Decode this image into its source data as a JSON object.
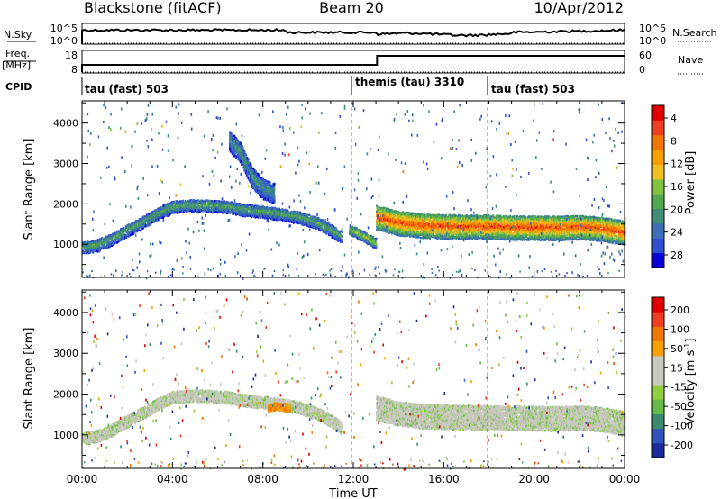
{
  "header": {
    "station": "Blackstone (fitACF)",
    "beam": "Beam 20",
    "date": "10/Apr/2012"
  },
  "top_panel": {
    "nsky_label": "N.Sky",
    "nsearch_label": "N.Search",
    "freq_label_line1": "Freq.",
    "freq_label_line2": "[MHz]",
    "nave_label": "Nave",
    "cpid_label": "CPID",
    "noise_ticks_left": [
      "10^5",
      "10^0"
    ],
    "noise_ticks_right": [
      "10^5",
      "10^0"
    ],
    "freq_ticks_left": [
      "18",
      "8"
    ],
    "nave_ticks_right": [
      "60",
      "0"
    ]
  },
  "cpid_segments": [
    {
      "label": "tau (fast) 503",
      "start_hour": 0
    },
    {
      "label": "themis (tau) 3310",
      "start_hour": 12
    },
    {
      "label": "tau (fast) 503",
      "start_hour": 18
    }
  ],
  "chart_data": [
    {
      "type": "heatmap",
      "name": "power",
      "ylabel": "Slant Range [km]",
      "xlabel": "",
      "ylim": [
        180,
        4550
      ],
      "yticks": [
        "1000",
        "2000",
        "3000",
        "4000"
      ],
      "colorbar_label": "Power [dB]",
      "colorbar_ticks": [
        "4",
        "8",
        "12",
        "16",
        "20",
        "24",
        "28"
      ],
      "colorbar_colors": [
        "#0a00d8",
        "#2f4fd0",
        "#3b6fb8",
        "#3e8e78",
        "#50a850",
        "#7fc23f",
        "#f0c020",
        "#f5a000",
        "#f07800",
        "#ee4020",
        "#e00000"
      ],
      "bands": [
        {
          "t": [
            0,
            0.6,
            1.2,
            2,
            2.8,
            3.5,
            4,
            4.8,
            5.6,
            6.4,
            7.2,
            8,
            8.8,
            9.6,
            10.4,
            11,
            11.5
          ],
          "r": [
            950,
            1000,
            1130,
            1380,
            1620,
            1840,
            1960,
            2000,
            1990,
            1960,
            1880,
            1840,
            1780,
            1700,
            1560,
            1380,
            1200
          ],
          "w": 300,
          "p": 12
        },
        {
          "t": [
            11.8,
            12.2,
            12.6,
            13
          ],
          "r": [
            1400,
            1300,
            1180,
            1050
          ],
          "w": 260,
          "p": 16
        },
        {
          "t": [
            13,
            14,
            15,
            16,
            17,
            18,
            19,
            20,
            21,
            22,
            23,
            24
          ],
          "r": [
            1700,
            1560,
            1500,
            1480,
            1470,
            1470,
            1450,
            1450,
            1440,
            1460,
            1420,
            1320
          ],
          "w": 600,
          "p": 26
        },
        {
          "t": [
            6.5,
            7,
            7.5,
            8,
            8.5
          ],
          "r": [
            3600,
            3300,
            2700,
            2400,
            2300
          ],
          "w": 500,
          "p": 10
        }
      ]
    },
    {
      "type": "heatmap",
      "name": "velocity",
      "ylabel": "Slant Range [km]",
      "xlabel": "Time UT",
      "ylim": [
        180,
        4550
      ],
      "yticks": [
        "1000",
        "2000",
        "3000",
        "4000"
      ],
      "xticks": [
        "00:00",
        "04:00",
        "08:00",
        "12:00",
        "16:00",
        "20:00",
        "00:00"
      ],
      "colorbar_label": "Velocity [m s",
      "colorbar_unit_sup": "-1",
      "colorbar_unit_close": "]",
      "colorbar_ticks": [
        "200",
        "100",
        "50",
        "15",
        "-15",
        "-50",
        "-100",
        "-200"
      ],
      "colorbar_colors": [
        "#1a2a9a",
        "#2f53b8",
        "#3a8a70",
        "#66bb44",
        "#90d040",
        "#c8c8c0",
        "#c8c8c0",
        "#f5a000",
        "#f07800",
        "#ee4020",
        "#e00000"
      ],
      "bands": [
        {
          "t": [
            0,
            0.6,
            1.2,
            2,
            2.8,
            3.5,
            4,
            4.8,
            5.6,
            6.4,
            7.2,
            8,
            8.8,
            9.6,
            10.4,
            11,
            11.5
          ],
          "r": [
            950,
            1000,
            1130,
            1380,
            1620,
            1840,
            1960,
            2000,
            1990,
            1960,
            1880,
            1840,
            1780,
            1700,
            1560,
            1380,
            1200
          ],
          "w": 300,
          "v": 0
        },
        {
          "t": [
            13,
            14,
            15,
            16,
            17,
            18,
            19,
            20,
            21,
            22,
            23,
            24
          ],
          "r": [
            1700,
            1560,
            1500,
            1480,
            1470,
            1470,
            1450,
            1450,
            1440,
            1460,
            1420,
            1320
          ],
          "w": 600,
          "v": 0
        },
        {
          "t": [
            8.2,
            8.6,
            9.2
          ],
          "r": [
            1700,
            1750,
            1700
          ],
          "w": 200,
          "v": -60
        }
      ]
    }
  ]
}
